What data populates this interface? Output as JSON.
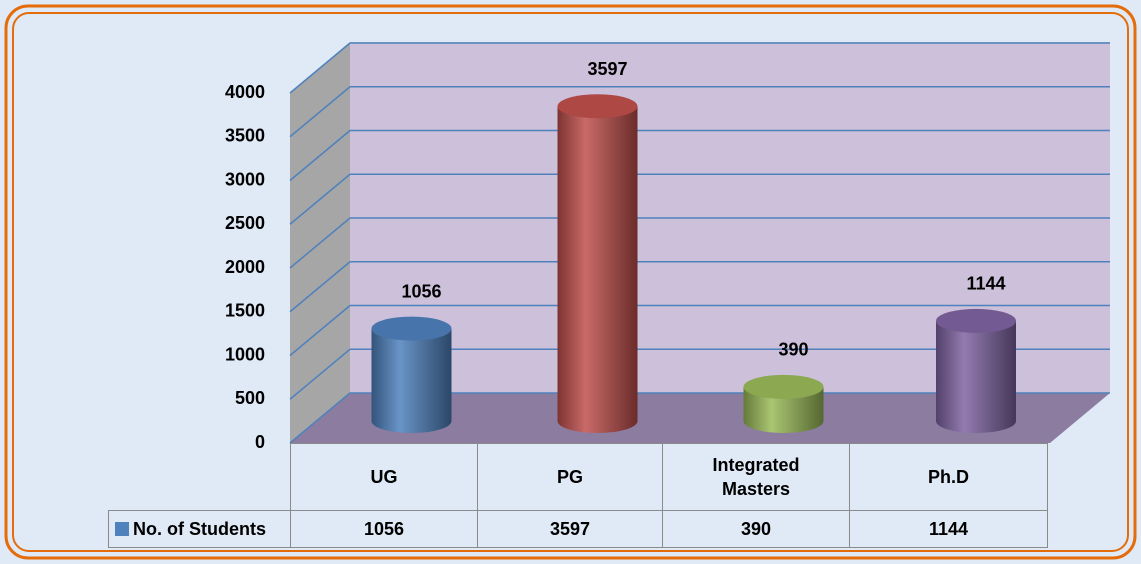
{
  "chart_data": {
    "type": "bar",
    "categories": [
      "UG",
      "PG",
      "Integrated Masters",
      "Ph.D"
    ],
    "series": [
      {
        "name": "No. of Students",
        "color": "#4f81bd",
        "colors": [
          "#4f81bd",
          "#c0504d",
          "#9bbb59",
          "#8064a2"
        ],
        "values": [
          1056,
          3597,
          390,
          1144
        ]
      }
    ],
    "ylim": [
      0,
      4000
    ],
    "yticks": [
      0,
      500,
      1000,
      1500,
      2000,
      2500,
      3000,
      3500,
      4000
    ],
    "grid": true,
    "legend": "bottom"
  }
}
